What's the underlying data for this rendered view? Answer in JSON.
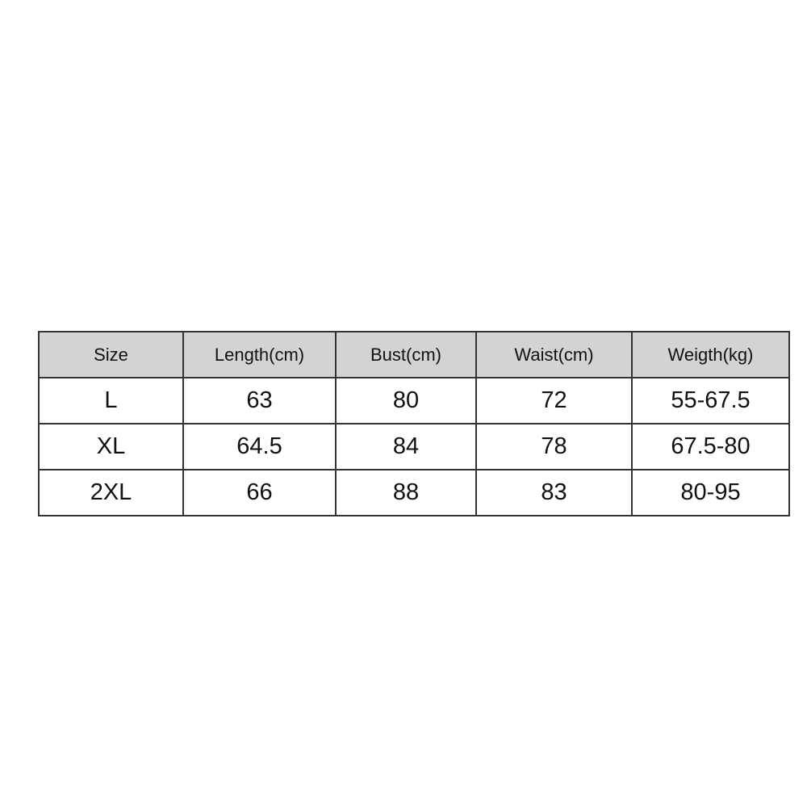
{
  "table": {
    "headers": [
      "Size",
      "Length(cm)",
      "Bust(cm)",
      "Waist(cm)",
      "Weigth(kg)"
    ],
    "rows": [
      [
        "L",
        "63",
        "80",
        "72",
        "55-67.5"
      ],
      [
        "XL",
        "64.5",
        "84",
        "78",
        "67.5-80"
      ],
      [
        "2XL",
        "66",
        "88",
        "83",
        "80-95"
      ]
    ]
  },
  "colors": {
    "header_bg": "#d3d3d3",
    "border": "#333333"
  }
}
